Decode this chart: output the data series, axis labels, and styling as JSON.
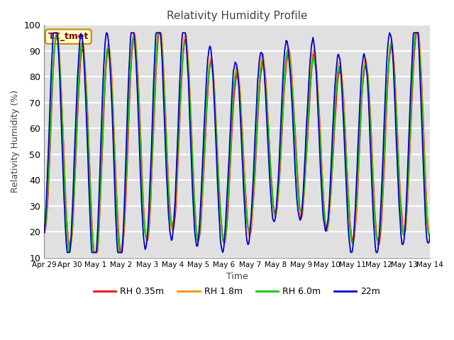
{
  "title": "Relativity Humidity Profile",
  "xlabel": "Time",
  "ylabel": "Relativity Humidity (%)",
  "ylim": [
    10,
    100
  ],
  "background_color": "#ffffff",
  "plot_bg_color": "#e0e0e0",
  "grid_color": "#f0f0f0",
  "annotation_text": "TZ_tmet",
  "annotation_bg": "#ffffcc",
  "annotation_border": "#cc8800",
  "annotation_text_color": "#880000",
  "series_colors": {
    "RH 0.35m": "#ff0000",
    "RH 1.8m": "#ff8c00",
    "RH 6.0m": "#00cc00",
    "22m": "#0000cc"
  },
  "legend_labels": [
    "RH 0.35m",
    "RH 1.8m",
    "RH 6.0m",
    "22m"
  ],
  "xtick_labels": [
    "Apr 29",
    "Apr 30",
    "May 1",
    "May 2",
    "May 3",
    "May 4",
    "May 5",
    "May 6",
    "May 7",
    "May 8",
    "May 9",
    "May 10",
    "May 11",
    "May 12",
    "May 13",
    "May 14"
  ],
  "ytick_values": [
    10,
    20,
    30,
    40,
    50,
    60,
    70,
    80,
    90,
    100
  ],
  "n_days": 15,
  "seed": 123
}
